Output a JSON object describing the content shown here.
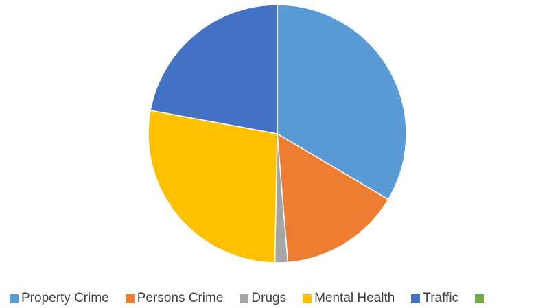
{
  "chart_data": {
    "type": "pie",
    "title": "",
    "categories": [
      "Property Crime",
      "Persons Crime",
      "Drugs",
      "Mental Health",
      "Traffic",
      ""
    ],
    "values": [
      33.5,
      15.2,
      1.6,
      27.6,
      22.1,
      0
    ],
    "colors": [
      "#5B9BD5",
      "#ED7D31",
      "#A5A5A5",
      "#FFC000",
      "#4472C4",
      "#70AD47"
    ],
    "legend_position": "bottom",
    "start_angle": "12 o'clock",
    "direction": "clockwise"
  }
}
